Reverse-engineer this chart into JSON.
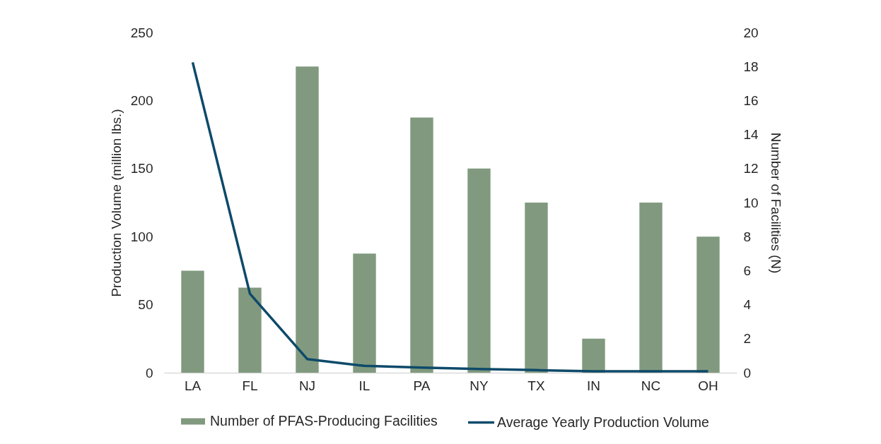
{
  "chart_data": {
    "type": "bar",
    "categories": [
      "LA",
      "FL",
      "NJ",
      "IL",
      "PA",
      "NY",
      "TX",
      "IN",
      "NC",
      "OH"
    ],
    "ylabel": "Production Volume (million lbs.)",
    "y2label": "Number of Facilities (N)",
    "series": [
      {
        "name": "Number of PFAS-Producing Facilities",
        "axis": "y2",
        "color": "#819a7f",
        "values": [
          6,
          5,
          18,
          7,
          15,
          12,
          10,
          2,
          10,
          8
        ]
      },
      {
        "name": "Average Yearly Production Volume",
        "type": "line",
        "color": "#0e4a6a",
        "values": [
          228,
          58,
          10,
          5,
          3.8,
          2.7,
          1.9,
          1,
          1,
          1
        ]
      }
    ],
    "ylim": [
      0,
      250
    ],
    "yticks": [
      0,
      50,
      100,
      150,
      200,
      250
    ],
    "y2lim": [
      0,
      20
    ],
    "y2ticks": [
      0,
      2,
      4,
      6,
      8,
      10,
      12,
      14,
      16,
      18,
      20
    ],
    "grid": false,
    "legend": "bottom",
    "marker": "none",
    "line_style": "solid"
  }
}
